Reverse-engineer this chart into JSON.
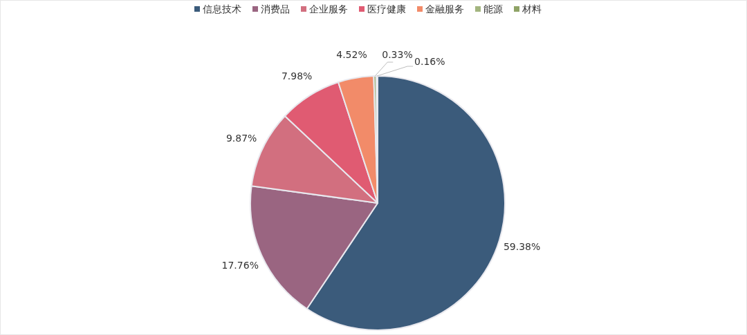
{
  "chart_data": {
    "type": "pie",
    "categories": [
      "信息技术",
      "消费品",
      "企业服务",
      "医疗健康",
      "金融服务",
      "能源",
      "材料"
    ],
    "values": [
      59.38,
      17.76,
      9.87,
      7.98,
      4.52,
      0.33,
      0.16
    ],
    "colors": [
      "#3b5b7b",
      "#9a6581",
      "#d26f7f",
      "#e05b72",
      "#f28b69",
      "#a3b57f",
      "#8fa366"
    ],
    "value_labels": [
      "59.38%",
      "17.76%",
      "9.87%",
      "7.98%",
      "4.52%",
      "0.33%",
      "0.16%"
    ],
    "legend": "top"
  }
}
